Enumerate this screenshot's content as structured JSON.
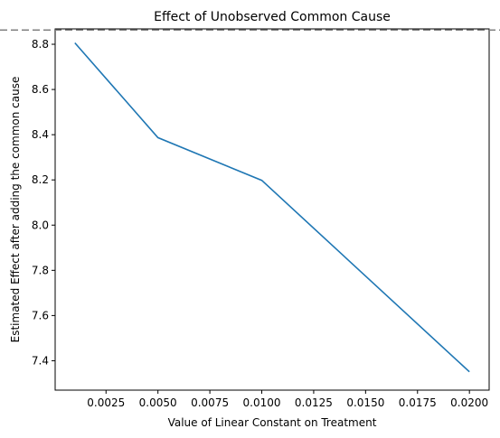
{
  "chart_data": {
    "type": "line",
    "title": "Effect of Unobserved Common Cause",
    "xlabel": "Value of Linear Constant on Treatment",
    "ylabel": "Estimated Effect after adding the common cause",
    "xlim": [
      5e-05,
      0.02095
    ],
    "ylim": [
      7.27,
      8.868
    ],
    "x_ticks": [
      0.0025,
      0.005,
      0.0075,
      0.01,
      0.0125,
      0.015,
      0.0175,
      0.02
    ],
    "x_tick_labels": [
      "0.0025",
      "0.0050",
      "0.0075",
      "0.0100",
      "0.0125",
      "0.0150",
      "0.0175",
      "0.0200"
    ],
    "y_ticks": [
      7.4,
      7.6,
      7.8,
      8.0,
      8.2,
      8.4,
      8.6,
      8.8
    ],
    "y_tick_labels": [
      "7.4",
      "7.6",
      "7.8",
      "8.0",
      "8.2",
      "8.4",
      "8.6",
      "8.8"
    ],
    "grid": false,
    "series": [
      {
        "x": [
          0.001,
          0.005,
          0.01,
          0.02
        ],
        "y": [
          8.806,
          8.387,
          8.198,
          7.351
        ],
        "color": "#1f77b4"
      }
    ],
    "reference_line": {
      "y": 8.863,
      "style": "dashed",
      "color": "#808080"
    }
  }
}
